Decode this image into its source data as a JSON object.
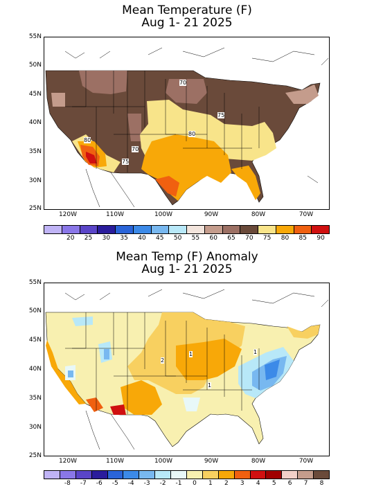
{
  "panel1": {
    "title_line1": "Mean Temperature (F)",
    "title_line2": "Aug 1- 21 2025",
    "lat_labels": [
      "55N",
      "50N",
      "45N",
      "40N",
      "35N",
      "30N",
      "25N"
    ],
    "lon_labels": [
      "120W",
      "110W",
      "100W",
      "90W",
      "80W",
      "70W"
    ],
    "contour_labels": [
      "70",
      "75",
      "80",
      "80",
      "70",
      "75"
    ],
    "legend": {
      "labels": [
        "20",
        "25",
        "30",
        "35",
        "40",
        "45",
        "50",
        "55",
        "60",
        "65",
        "70",
        "75",
        "80",
        "85",
        "90"
      ],
      "colors": [
        "#c0b4f6",
        "#8a77e8",
        "#5a45c8",
        "#2a1c9c",
        "#2a64d8",
        "#3c8ae8",
        "#78b8f0",
        "#b8e8f8",
        "#f2e4dc",
        "#c49c8c",
        "#9c7064",
        "#6a4a3a",
        "#f8e48a",
        "#f8a808",
        "#f06010",
        "#d01010"
      ]
    }
  },
  "panel2": {
    "title_line1": "Mean Temp (F) Anomaly",
    "title_line2": "Aug 1- 21 2025",
    "lat_labels": [
      "55N",
      "50N",
      "45N",
      "40N",
      "35N",
      "30N",
      "25N"
    ],
    "lon_labels": [
      "120W",
      "110W",
      "100W",
      "90W",
      "80W",
      "70W"
    ],
    "contour_labels": [
      "2",
      "1",
      "1",
      "1"
    ],
    "legend": {
      "labels": [
        "-8",
        "-7",
        "-6",
        "-5",
        "-4",
        "-3",
        "-2",
        "-1",
        "0",
        "1",
        "2",
        "3",
        "4",
        "5",
        "6",
        "7",
        "8"
      ],
      "colors": [
        "#c0b4f6",
        "#8a77e8",
        "#5a45c8",
        "#2a1c9c",
        "#2a64d8",
        "#3c8ae8",
        "#78b8f0",
        "#b8e8f8",
        "#e8f8f8",
        "#f8f0b0",
        "#f8d060",
        "#f8a808",
        "#f06010",
        "#d01010",
        "#a00000",
        "#f2d0c8",
        "#c49c8c",
        "#6a4a3a"
      ]
    }
  }
}
